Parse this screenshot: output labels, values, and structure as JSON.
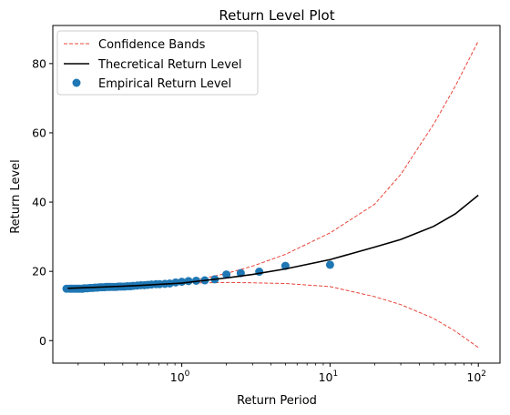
{
  "chart_data": {
    "type": "scatter",
    "title": "Return Level Plot",
    "xlabel": "Return Period",
    "ylabel": "Return Level",
    "xscale": "log",
    "xlim": [
      0.135,
      140
    ],
    "ylim": [
      -6.5,
      91
    ],
    "grid": false,
    "legend_placement": "top-left",
    "x_ticks": [
      {
        "value": 1,
        "base": "10",
        "exp": "0"
      },
      {
        "value": 10,
        "base": "10",
        "exp": "1"
      },
      {
        "value": 100,
        "base": "10",
        "exp": "2"
      }
    ],
    "y_ticks": [
      0,
      20,
      40,
      60,
      80
    ],
    "series": [
      {
        "name": "Confidence Bands",
        "kind": "line",
        "style": "dashed",
        "color": "#e8443a",
        "lower": {
          "x": [
            0.17,
            0.3,
            0.5,
            1,
            2,
            3,
            5,
            10,
            20,
            30,
            50,
            70,
            100
          ],
          "y": [
            15.2,
            15.8,
            16.2,
            16.6,
            16.8,
            16.7,
            16.5,
            15.6,
            12.7,
            10.4,
            6.4,
            2.7,
            -2
          ]
        },
        "upper": {
          "x": [
            0.17,
            0.3,
            0.5,
            1,
            2,
            3,
            5,
            10,
            20,
            30,
            50,
            70,
            100
          ],
          "y": [
            15.0,
            15.2,
            15.6,
            16.6,
            19.4,
            21.5,
            24.9,
            31.1,
            39.4,
            48.0,
            62.5,
            73.5,
            86.5
          ]
        }
      },
      {
        "name": "Thecretical Return Level",
        "kind": "line",
        "style": "solid",
        "color": "#000000",
        "x": [
          0.17,
          0.3,
          0.5,
          1,
          2,
          3,
          5,
          10,
          20,
          30,
          50,
          70,
          100
        ],
        "y": [
          15.1,
          15.5,
          15.9,
          16.6,
          18.1,
          19.1,
          20.7,
          23.4,
          27.0,
          29.2,
          33.0,
          36.6,
          42.0
        ]
      },
      {
        "name": "Empirical Return Level",
        "kind": "scatter",
        "color": "#1f77b4",
        "x": [
          0.167,
          0.175,
          0.18,
          0.185,
          0.19,
          0.195,
          0.2,
          0.205,
          0.21,
          0.215,
          0.22,
          0.23,
          0.24,
          0.25,
          0.26,
          0.27,
          0.28,
          0.29,
          0.3,
          0.31,
          0.32,
          0.33,
          0.345,
          0.36,
          0.375,
          0.39,
          0.41,
          0.43,
          0.45,
          0.47,
          0.5,
          0.53,
          0.56,
          0.59,
          0.625,
          0.67,
          0.71,
          0.77,
          0.83,
          0.91,
          1.0,
          1.11,
          1.25,
          1.43,
          1.67,
          2.0,
          2.5,
          3.33,
          5.0,
          10.0
        ],
        "y": [
          15.0,
          15.0,
          15.0,
          15.0,
          15.0,
          15.0,
          15.0,
          15.0,
          15.0,
          15.0,
          15.1,
          15.1,
          15.2,
          15.2,
          15.3,
          15.3,
          15.4,
          15.4,
          15.4,
          15.5,
          15.5,
          15.5,
          15.5,
          15.5,
          15.6,
          15.6,
          15.6,
          15.7,
          15.7,
          15.8,
          15.9,
          16.0,
          16.0,
          16.1,
          16.2,
          16.3,
          16.3,
          16.4,
          16.5,
          16.8,
          17.0,
          17.2,
          17.3,
          17.4,
          17.7,
          19.1,
          19.5,
          19.9,
          21.6,
          21.9
        ]
      }
    ]
  }
}
